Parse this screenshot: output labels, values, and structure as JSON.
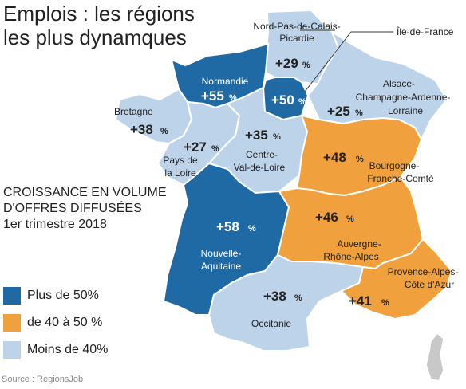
{
  "title_line1": "Emplois : les régions",
  "title_line2": "les plus dynamques",
  "subtitle_line1": "CROISSANCE EN VOLUME",
  "subtitle_line2": "D'OFFRES DIFFUSÉES",
  "subtitle_line3": "1er trimestre 2018",
  "source": "Source : RegionsJob",
  "colors": {
    "high": "#1f6aa5",
    "mid": "#f0a03c",
    "low": "#bdd3ea",
    "border": "#ffffff"
  },
  "legend": [
    {
      "label": "Plus de 50%",
      "color": "#1f6aa5"
    },
    {
      "label": "de 40 à 50 %",
      "color": "#f0a03c"
    },
    {
      "label": "Moins de 40%",
      "color": "#bdd3ea"
    }
  ],
  "regions": {
    "hdf": {
      "name1": "Nord-Pas-de-Calais-",
      "name2": "Picardie",
      "value": "+29",
      "pct": "%"
    },
    "idf": {
      "name1": "Île-de-France",
      "value": "+50",
      "pct": "%"
    },
    "grandest": {
      "name1": "Alsace-",
      "name2": "Champagne-Ardenne-",
      "name3": "Lorraine",
      "value": "+25",
      "pct": "%"
    },
    "normandie": {
      "name1": "Normandie",
      "value": "+55",
      "pct": "%"
    },
    "bretagne": {
      "name1": "Bretagne",
      "value": "+38",
      "pct": "%"
    },
    "pdl": {
      "name1": "Pays de",
      "name2": "la Loire",
      "value": "+27",
      "pct": "%"
    },
    "cvl": {
      "name1": "Centre-",
      "name2": "Val-de-Loire",
      "value": "+35",
      "pct": "%"
    },
    "bfc": {
      "name1": "Bourgogne-",
      "name2": "Franche-Comté",
      "value": "+48",
      "pct": "%"
    },
    "na": {
      "name1": "Nouvelle-",
      "name2": "Aquitaine",
      "value": "+58",
      "pct": "%"
    },
    "ara": {
      "name1": "Auvergne-",
      "name2": "Rhône-Alpes",
      "value": "+46",
      "pct": "%"
    },
    "occ": {
      "name1": "Occitanie",
      "value": "+38",
      "pct": "%"
    },
    "paca": {
      "name1": "Provence-Alpes-",
      "name2": "Côte d'Azur",
      "value": "+41",
      "pct": "%"
    }
  }
}
